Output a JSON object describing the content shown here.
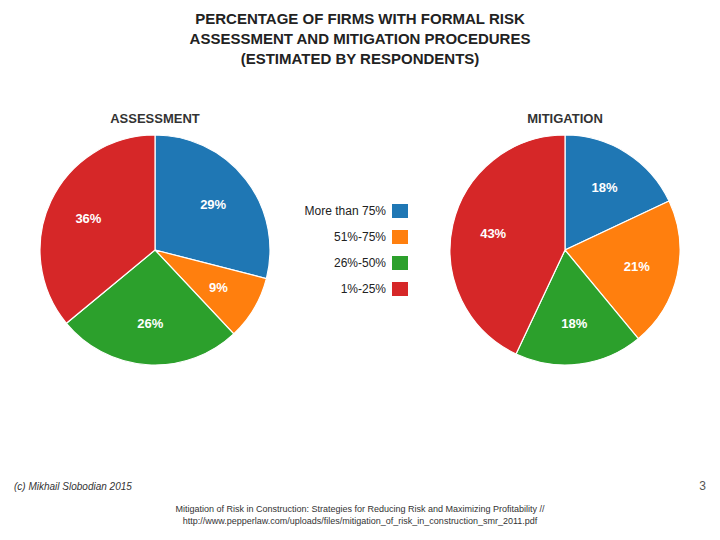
{
  "chart_data": {
    "type": "pie",
    "title": "PERCENTAGE OF FIRMS WITH FORMAL RISK\nASSESSMENT AND MITIGATION PROCEDURES\n(ESTIMATED BY RESPONDENTS)",
    "categories": [
      "More than 75%",
      "51%-75%",
      "26%-50%",
      "1%-25%"
    ],
    "series": [
      {
        "name": "ASSESSMENT",
        "values": [
          29,
          9,
          26,
          36
        ],
        "value_labels": [
          "29%",
          "9%",
          "26%",
          "36%"
        ]
      },
      {
        "name": "MITIGATION",
        "values": [
          18,
          21,
          18,
          43
        ],
        "value_labels": [
          "18%",
          "21%",
          "18%",
          "43%"
        ]
      }
    ],
    "data_labels": true,
    "legend": "center",
    "annotations": [
      "(c) Mikhail Slobodian 2015",
      "3",
      "Mitigation of Risk in Construction: Strategies for Reducing Risk and Maximizing Profitability //\nhttp://www.pepperlaw.com/uploads/files/mitigation_of_risk_in_construction_smr_2011.pdf"
    ]
  }
}
